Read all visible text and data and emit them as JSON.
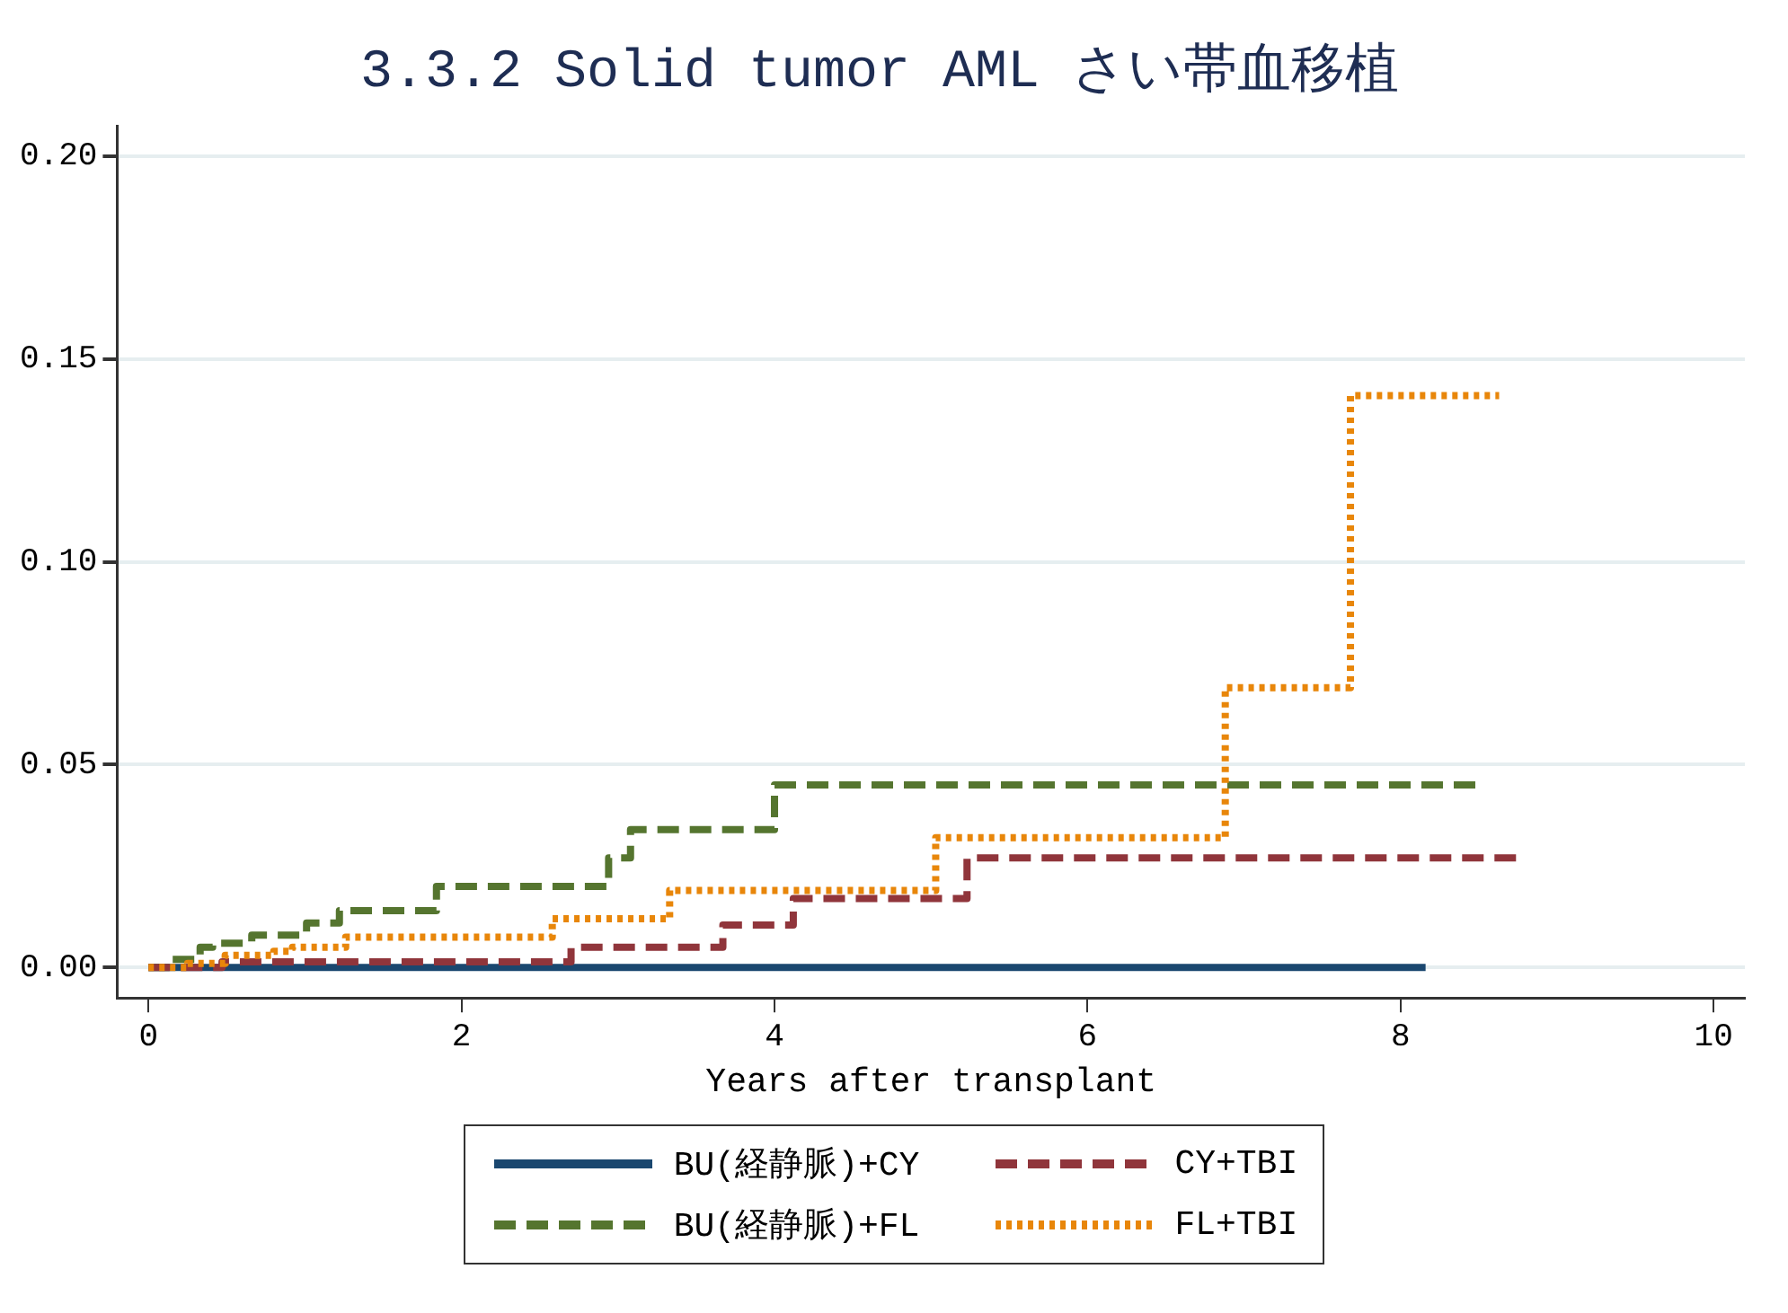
{
  "chart_data": {
    "type": "step",
    "title": "3.3.2 Solid tumor AML さい帯血移植",
    "xlabel": "Years after transplant",
    "xlim": [
      -0.2,
      10.2
    ],
    "xticks": [
      0,
      2,
      4,
      6,
      8,
      10
    ],
    "ylim": [
      -0.0075,
      0.2075
    ],
    "yticks": [
      {
        "value": 0,
        "label": "0.00"
      },
      {
        "value": 0.05,
        "label": "0.05"
      },
      {
        "value": 0.1,
        "label": "0.10"
      },
      {
        "value": 0.15,
        "label": "0.15"
      },
      {
        "value": 0.2,
        "label": "0.20"
      }
    ],
    "grid": "y",
    "legend": "bottom",
    "marker": "none",
    "series": [
      {
        "name": "BU(経静脈)+CY",
        "color": "#1a476f",
        "line_style": "solid",
        "x": [
          0,
          8.16
        ],
        "values": [
          0,
          0
        ]
      },
      {
        "name": "BU(経静脈)+FL",
        "color": "#55752f",
        "line_style": "dashed",
        "x": [
          0,
          0.13,
          0.33,
          0.41,
          0.66,
          1.01,
          1.22,
          1.84,
          2.94,
          3.08,
          4.0,
          8.5
        ],
        "values": [
          0,
          0.002,
          0.005,
          0.006,
          0.008,
          0.011,
          0.014,
          0.02,
          0.027,
          0.034,
          0.045,
          0.045
        ]
      },
      {
        "name": "CY+TBI",
        "color": "#90353b",
        "line_style": "dashed",
        "x": [
          0,
          0.47,
          2.7,
          3.67,
          4.12,
          5.23,
          8.74
        ],
        "values": [
          0,
          0.0014,
          0.005,
          0.0105,
          0.017,
          0.027,
          0.027
        ]
      },
      {
        "name": "FL+TBI",
        "color": "#e8860a",
        "line_style": "dotted",
        "x": [
          0,
          0.25,
          0.49,
          0.8,
          0.92,
          1.26,
          2.58,
          3.33,
          5.03,
          6.88,
          7.68,
          8.63
        ],
        "values": [
          0,
          0.001,
          0.003,
          0.004,
          0.005,
          0.0075,
          0.012,
          0.019,
          0.032,
          0.069,
          0.141,
          0.141
        ]
      }
    ]
  }
}
